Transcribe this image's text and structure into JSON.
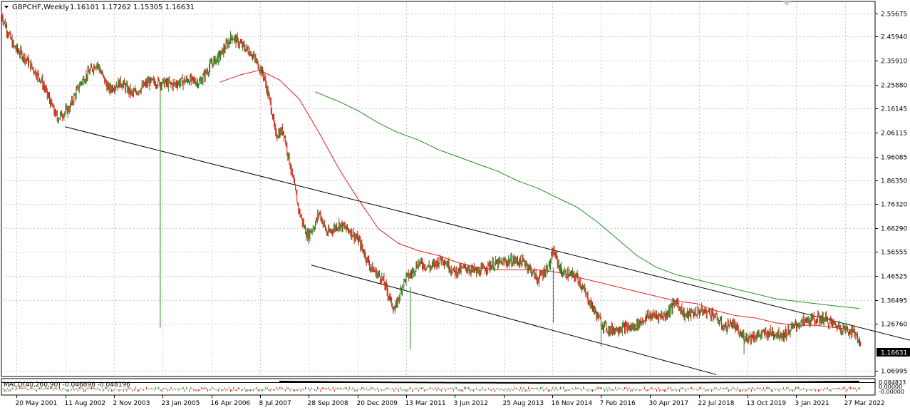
{
  "header": {
    "symbol_label": "GBPCHF,Weekly",
    "ohlc_label": "1.16101 1.17262 1.15305 1.16631",
    "menu_icon": "triangle-down-icon"
  },
  "macd_label": "MACD(40,260,90) -0.046898 -0.048196",
  "macd_scale_labels": [
    "0.084833",
    "0.00000",
    "-0.00000"
  ],
  "colors": {
    "background": "#ffffff",
    "frame": "#000000",
    "grid": "#c8c8c8",
    "candle_up": "#2e7d1e",
    "candle_down": "#d01c0c",
    "ma_fast": "#e01c1c",
    "ma_slow": "#1f8f1f",
    "price_tag_bg": "#000000",
    "price_tag_text": "#ffffff"
  },
  "chart_data": {
    "type": "line",
    "title": "GBPCHF,Weekly",
    "price_axis": {
      "ylim": [
        1.05,
        2.6
      ],
      "tick_labels": [
        "2.55675",
        "2.45940",
        "2.35910",
        "2.25880",
        "2.16145",
        "2.06115",
        "1.96085",
        "1.86350",
        "1.76320",
        "1.66290",
        "1.56555",
        "1.46525",
        "1.36495",
        "1.26760",
        "1.06995"
      ],
      "tick_values": [
        2.55675,
        2.4594,
        2.3591,
        2.2588,
        2.16145,
        2.06115,
        1.96085,
        1.8635,
        1.7632,
        1.6629,
        1.56555,
        1.46525,
        1.36495,
        1.2676,
        1.06995
      ],
      "current_price_label": "1.16631",
      "current_price": 1.16631
    },
    "time_axis": {
      "tick_labels": [
        "20 May 2001",
        "11 Aug 2002",
        "2 Nov 2003",
        "23 Jan 2005",
        "16 Apr 2006",
        "8 Jul 2007",
        "28 Sep 2008",
        "20 Dec 2009",
        "13 Mar 2011",
        "3 Jun 2012",
        "25 Aug 2013",
        "16 Nov 2014",
        "7 Feb 2016",
        "30 Apr 2017",
        "22 Jul 2018",
        "13 Oct 2019",
        "3 Jan 2021",
        "27 Mar 2022"
      ],
      "xlim": [
        2001.0,
        2023.0
      ],
      "tick_years": [
        2001.38,
        2002.61,
        2003.84,
        2005.06,
        2006.29,
        2007.52,
        2008.74,
        2009.97,
        2011.19,
        2012.42,
        2013.65,
        2014.88,
        2016.1,
        2017.33,
        2018.56,
        2019.78,
        2021.01,
        2022.24
      ]
    },
    "grid": true,
    "series": [
      {
        "kind": "price",
        "x": [
          2001.0,
          2001.3,
          2001.6,
          2002.0,
          2002.4,
          2002.7,
          2003.0,
          2003.4,
          2003.7,
          2004.0,
          2004.3,
          2004.7,
          2005.0,
          2005.3,
          2005.7,
          2006.0,
          2006.3,
          2006.5,
          2006.8,
          2007.0,
          2007.3,
          2007.6,
          2007.8,
          2007.9,
          2008.1,
          2008.3,
          2008.5,
          2008.7,
          2008.9,
          2009.0,
          2009.2,
          2009.5,
          2009.8,
          2010.0,
          2010.3,
          2010.6,
          2010.9,
          2011.1,
          2011.2,
          2011.3,
          2011.5,
          2011.8,
          2012.1,
          2012.4,
          2012.7,
          2013.0,
          2013.3,
          2013.6,
          2013.9,
          2014.2,
          2014.5,
          2014.8,
          2014.9,
          2015.1,
          2015.5,
          2015.8,
          2016.1,
          2016.3,
          2016.6,
          2016.9,
          2017.3,
          2017.7,
          2018.0,
          2018.2,
          2018.6,
          2018.9,
          2019.2,
          2019.4,
          2019.6,
          2019.8,
          2020.1,
          2020.4,
          2020.7,
          2021.0,
          2021.3,
          2021.7,
          2022.0,
          2022.3,
          2022.5,
          2022.65
        ],
        "values": [
          2.55,
          2.42,
          2.37,
          2.28,
          2.12,
          2.16,
          2.27,
          2.35,
          2.24,
          2.27,
          2.22,
          2.27,
          2.27,
          2.26,
          2.28,
          2.27,
          2.35,
          2.38,
          2.46,
          2.43,
          2.39,
          2.3,
          2.16,
          2.05,
          2.07,
          1.9,
          1.73,
          1.63,
          1.68,
          1.73,
          1.64,
          1.68,
          1.65,
          1.61,
          1.5,
          1.45,
          1.32,
          1.43,
          1.46,
          1.47,
          1.52,
          1.5,
          1.54,
          1.48,
          1.5,
          1.48,
          1.51,
          1.52,
          1.53,
          1.52,
          1.45,
          1.51,
          1.57,
          1.48,
          1.46,
          1.36,
          1.27,
          1.24,
          1.25,
          1.25,
          1.3,
          1.3,
          1.36,
          1.3,
          1.32,
          1.31,
          1.25,
          1.27,
          1.22,
          1.21,
          1.22,
          1.23,
          1.22,
          1.26,
          1.28,
          1.29,
          1.26,
          1.24,
          1.23,
          1.16631
        ]
      },
      {
        "kind": "ma_fast",
        "x": [
          2006.5,
          2007.0,
          2007.5,
          2008.0,
          2008.5,
          2009.0,
          2009.5,
          2010.0,
          2010.5,
          2011.0,
          2011.5,
          2012.0,
          2012.5,
          2013.0,
          2013.5,
          2014.0,
          2014.5,
          2015.0,
          2015.5,
          2016.0,
          2016.5,
          2017.0,
          2017.5,
          2018.0,
          2018.5,
          2019.0,
          2019.5,
          2020.0,
          2020.5,
          2021.0,
          2021.5,
          2022.0,
          2022.5
        ],
        "values": [
          2.27,
          2.3,
          2.32,
          2.28,
          2.2,
          2.06,
          1.91,
          1.78,
          1.66,
          1.6,
          1.57,
          1.55,
          1.52,
          1.5,
          1.49,
          1.49,
          1.49,
          1.48,
          1.46,
          1.44,
          1.42,
          1.4,
          1.38,
          1.36,
          1.35,
          1.32,
          1.3,
          1.29,
          1.27,
          1.26,
          1.26,
          1.25,
          1.24
        ]
      },
      {
        "kind": "ma_slow",
        "x": [
          2008.9,
          2009.5,
          2010.0,
          2010.5,
          2011.0,
          2011.5,
          2012.0,
          2012.5,
          2013.0,
          2013.5,
          2014.0,
          2014.5,
          2015.0,
          2015.5,
          2016.0,
          2016.5,
          2017.0,
          2017.5,
          2018.0,
          2018.5,
          2019.0,
          2019.5,
          2020.0,
          2020.5,
          2021.0,
          2021.5,
          2022.0,
          2022.6
        ],
        "values": [
          2.23,
          2.19,
          2.15,
          2.1,
          2.06,
          2.03,
          1.99,
          1.96,
          1.93,
          1.9,
          1.86,
          1.83,
          1.79,
          1.75,
          1.69,
          1.62,
          1.55,
          1.5,
          1.47,
          1.45,
          1.43,
          1.41,
          1.39,
          1.37,
          1.36,
          1.35,
          1.34,
          1.33
        ]
      }
    ],
    "trendlines": [
      {
        "x": [
          2002.6,
          2024.5
        ],
        "y": [
          2.085,
          1.172
        ]
      },
      {
        "x": [
          2008.8,
          2019.0
        ],
        "y": [
          1.51,
          1.055
        ]
      }
    ],
    "spikes": [
      {
        "x": 2005.0,
        "low": 1.25,
        "high": 2.27
      },
      {
        "x": 2011.3,
        "low": 1.16,
        "high": 1.42
      },
      {
        "x": 2014.9,
        "low": 1.27,
        "high": 1.5
      },
      {
        "x": 2016.1,
        "low": 1.17,
        "high": 1.25
      },
      {
        "x": 2019.7,
        "low": 1.14,
        "high": 1.23
      }
    ]
  }
}
